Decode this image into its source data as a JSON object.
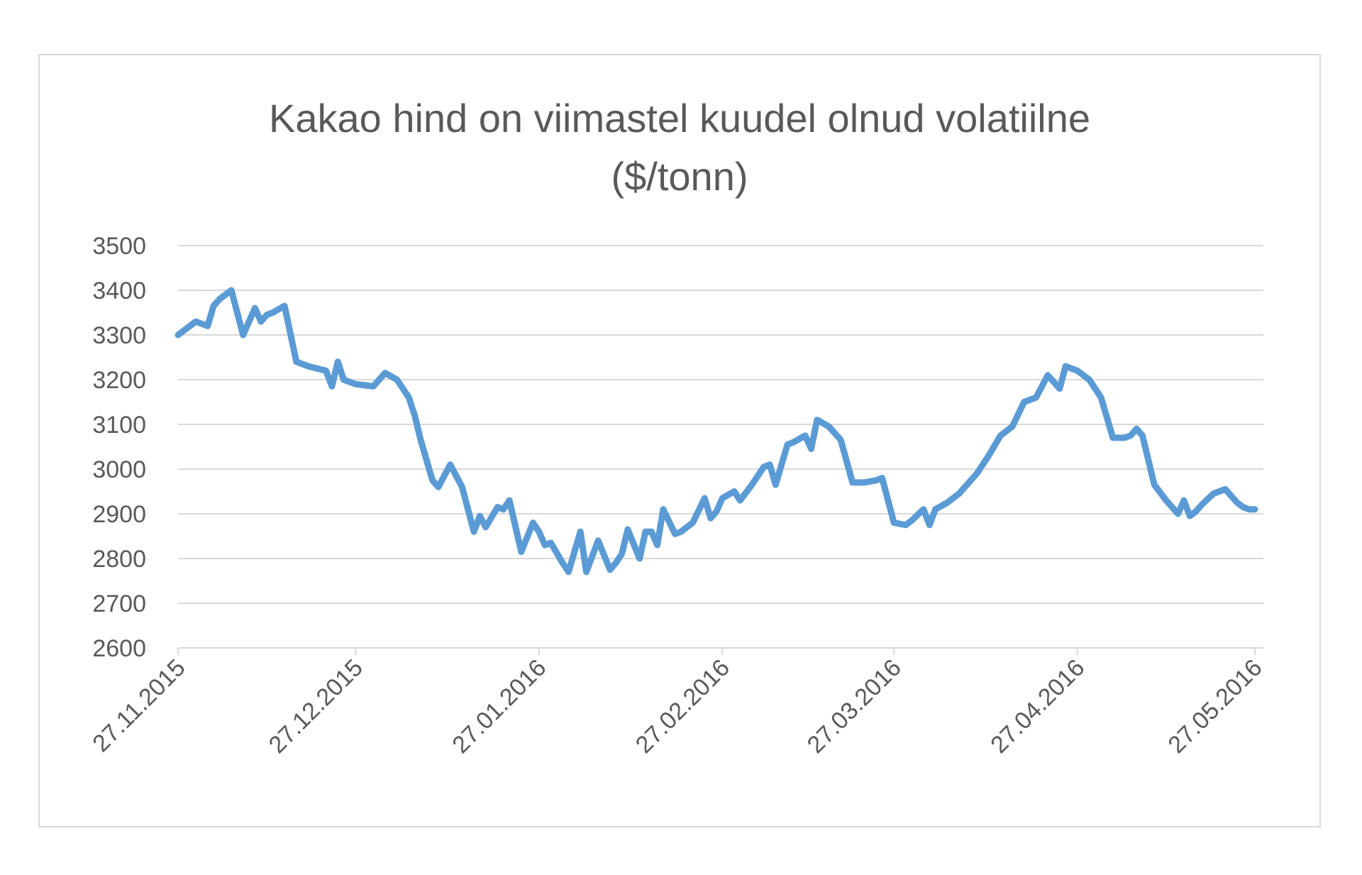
{
  "chart_data": {
    "type": "line",
    "title": [
      "Kakao hind on viimastel kuudel olnud volatiilne",
      "($/tonn)"
    ],
    "xlabel": "",
    "ylabel": "",
    "ylim": [
      2600,
      3500
    ],
    "yticks": [
      2600,
      2700,
      2800,
      2900,
      3000,
      3100,
      3200,
      3300,
      3400,
      3500
    ],
    "xlim": [
      "2015-11-27",
      "2016-05-27"
    ],
    "xtick_labels": [
      "27.11.2015",
      "27.12.2015",
      "27.01.2016",
      "27.02.2016",
      "27.03.2016",
      "27.04.2016",
      "27.05.2016"
    ],
    "xtick_dates": [
      "2015-11-27",
      "2015-12-27",
      "2016-01-27",
      "2016-02-27",
      "2016-03-27",
      "2016-04-27",
      "2016-05-27"
    ],
    "grid": true,
    "legend": "none",
    "line_color": "#5b9bd5",
    "series": [
      {
        "x": [
          "2015-11-27",
          "2015-11-30",
          "2015-12-02",
          "2015-12-03",
          "2015-12-04",
          "2015-12-06",
          "2015-12-08",
          "2015-12-10",
          "2015-12-11",
          "2015-12-12",
          "2015-12-13",
          "2015-12-15",
          "2015-12-17",
          "2015-12-19",
          "2015-12-22",
          "2015-12-23",
          "2015-12-24",
          "2015-12-25",
          "2015-12-26",
          "2015-12-27",
          "2015-12-30",
          "2016-01-01",
          "2016-01-03",
          "2016-01-05",
          "2016-01-06",
          "2016-01-07",
          "2016-01-09",
          "2016-01-10",
          "2016-01-12",
          "2016-01-14",
          "2016-01-15",
          "2016-01-16",
          "2016-01-17",
          "2016-01-18",
          "2016-01-20",
          "2016-01-21",
          "2016-01-22",
          "2016-01-24",
          "2016-01-26",
          "2016-01-27",
          "2016-01-28",
          "2016-01-29",
          "2016-01-31",
          "2016-02-01",
          "2016-02-02",
          "2016-02-03",
          "2016-02-04",
          "2016-02-06",
          "2016-02-08",
          "2016-02-09",
          "2016-02-10",
          "2016-02-11",
          "2016-02-13",
          "2016-02-14",
          "2016-02-15",
          "2016-02-16",
          "2016-02-17",
          "2016-02-19",
          "2016-02-20",
          "2016-02-22",
          "2016-02-24",
          "2016-02-25",
          "2016-02-26",
          "2016-02-27",
          "2016-02-29",
          "2016-03-01",
          "2016-03-03",
          "2016-03-05",
          "2016-03-06",
          "2016-03-07",
          "2016-03-09",
          "2016-03-10",
          "2016-03-12",
          "2016-03-13",
          "2016-03-14",
          "2016-03-16",
          "2016-03-18",
          "2016-03-20",
          "2016-03-22",
          "2016-03-24",
          "2016-03-25",
          "2016-03-27",
          "2016-03-29",
          "2016-03-30",
          "2016-04-01",
          "2016-04-02",
          "2016-04-03",
          "2016-04-05",
          "2016-04-07",
          "2016-04-08",
          "2016-04-09",
          "2016-04-10",
          "2016-04-12",
          "2016-04-14",
          "2016-04-16",
          "2016-04-18",
          "2016-04-20",
          "2016-04-22",
          "2016-04-24",
          "2016-04-25",
          "2016-04-26",
          "2016-04-27",
          "2016-04-28",
          "2016-04-29",
          "2016-05-01",
          "2016-05-03",
          "2016-05-05",
          "2016-05-06",
          "2016-05-07",
          "2016-05-08",
          "2016-05-10",
          "2016-05-12",
          "2016-05-14",
          "2016-05-15",
          "2016-05-16",
          "2016-05-17",
          "2016-05-18",
          "2016-05-20",
          "2016-05-22",
          "2016-05-24",
          "2016-05-25",
          "2016-05-26",
          "2016-05-27"
        ],
        "y": [
          3300,
          3330,
          3320,
          3365,
          3380,
          3400,
          3300,
          3360,
          3330,
          3345,
          3350,
          3365,
          3240,
          3230,
          3220,
          3185,
          3240,
          3200,
          3195,
          3190,
          3185,
          3215,
          3200,
          3160,
          3120,
          3065,
          2975,
          2960,
          3010,
          2960,
          2910,
          2860,
          2895,
          2870,
          2915,
          2910,
          2930,
          2815,
          2880,
          2860,
          2830,
          2835,
          2790,
          2770,
          2815,
          2860,
          2770,
          2840,
          2775,
          2790,
          2810,
          2865,
          2800,
          2860,
          2860,
          2830,
          2910,
          2855,
          2860,
          2880,
          2935,
          2890,
          2905,
          2935,
          2950,
          2930,
          2965,
          3005,
          3010,
          2965,
          3055,
          3060,
          3075,
          3045,
          3110,
          3095,
          3065,
          2970,
          2970,
          2975,
          2980,
          2880,
          2875,
          2885,
          2910,
          2875,
          2910,
          2925,
          2945,
          2960,
          2975,
          2990,
          3030,
          3075,
          3095,
          3150,
          3160,
          3210,
          3180,
          3230,
          3225,
          3220,
          3210,
          3200,
          3160,
          3070,
          3070,
          3075,
          3090,
          3075,
          2965,
          2930,
          2900,
          2930,
          2895,
          2905,
          2920,
          2945,
          2955,
          2925,
          2915,
          2910,
          2910
        ]
      }
    ]
  }
}
